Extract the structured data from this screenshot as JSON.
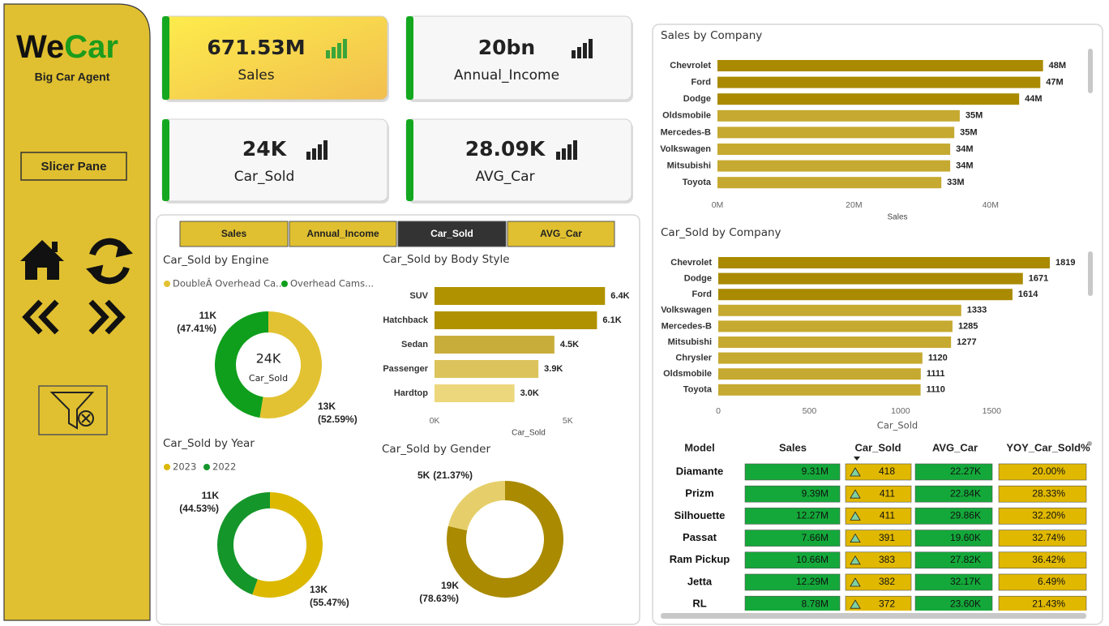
{
  "sidebar": {
    "logo": [
      "We",
      "Car"
    ],
    "tagline": "Big Car Agent",
    "slicer_button": "Slicer Pane"
  },
  "kpis": [
    {
      "value": "671.53M",
      "label": "Sales"
    },
    {
      "value": "20bn",
      "label": "Annual_Income"
    },
    {
      "value": "24K",
      "label": "Car_Sold"
    },
    {
      "value": "28.09K",
      "label": "AVG_Car"
    }
  ],
  "tabs": [
    "Sales",
    "Annual_Income",
    "Car_Sold",
    "AVG_Car"
  ],
  "active_tab": 2,
  "chart_data": [
    {
      "type": "donut",
      "title": "Car_Sold by Engine",
      "categories": [
        "DoubleÂ Overhead Ca...",
        "Overhead Cams..."
      ],
      "colors": [
        "#e2c232",
        "#0f9f1c"
      ],
      "values": [
        52.59,
        47.41
      ],
      "value_labels": [
        "(52.59%)",
        "(47.41%)"
      ],
      "count_labels": [
        "13K",
        "11K"
      ],
      "center_label": "24K",
      "center_caption": "Car_Sold"
    },
    {
      "type": "donut",
      "title": "Car_Sold by Year",
      "categories": [
        "2023",
        "2022"
      ],
      "colors": [
        "#dcb900",
        "#14962a"
      ],
      "values": [
        55.47,
        44.53
      ],
      "value_labels": [
        "(55.47%)",
        "(44.53%)"
      ],
      "count_labels": [
        "13K",
        "11K"
      ]
    },
    {
      "type": "hbar",
      "title": "Car_Sold by Body Style",
      "categories": [
        "SUV",
        "Hatchback",
        "Sedan",
        "Passenger",
        "Hardtop"
      ],
      "values": [
        6400,
        6100,
        4500,
        3900,
        3000
      ],
      "value_labels": [
        "6.4K",
        "6.1K",
        "4.5K",
        "3.9K",
        "3.0K"
      ],
      "colors": [
        "#b09200",
        "#b09200",
        "#c9ad3a",
        "#dcc35c",
        "#ecd77c"
      ],
      "xlim": [
        0,
        7000
      ],
      "xticks": [
        {
          "value": 0,
          "label": "0K"
        },
        {
          "value": 5000,
          "label": "5K"
        }
      ],
      "x_label": "Car_Sold",
      "grid": false
    },
    {
      "type": "donut",
      "title": "Car_Sold by Gender",
      "colors": [
        "#a98a00",
        "#e6cf6a"
      ],
      "values": [
        78.63,
        21.37
      ],
      "value_labels": [
        "(78.63%)",
        "(21.37%)"
      ],
      "count_labels": [
        "19K",
        "5K"
      ]
    },
    {
      "type": "hbar",
      "title": "Sales by Company",
      "categories": [
        "Chevrolet",
        "Ford",
        "Dodge",
        "Oldsmobile",
        "Mercedes-B",
        "Volkswagen",
        "Mitsubishi",
        "Toyota"
      ],
      "values": [
        47700000,
        47300000,
        44200000,
        35500000,
        34700000,
        34100000,
        34100000,
        32800000
      ],
      "value_labels": [
        "48M",
        "47M",
        "44M",
        "35M",
        "35M",
        "34M",
        "34M",
        "33M"
      ],
      "colors": [
        "#a98a00",
        "#a98a00",
        "#a98a00",
        "#c6a930",
        "#c6a930",
        "#c6a930",
        "#c6a930",
        "#c6a930"
      ],
      "xlim": [
        0,
        50000000
      ],
      "xticks": [
        {
          "value": 0,
          "label": "0M"
        },
        {
          "value": 20000000,
          "label": "20M"
        },
        {
          "value": 40000000,
          "label": "40M"
        }
      ],
      "x_label": "Sales",
      "grid": false
    },
    {
      "type": "hbar",
      "title": "Car_Sold by Company",
      "categories": [
        "Chevrolet",
        "Dodge",
        "Ford",
        "Volkswagen",
        "Mercedes-B",
        "Mitsubishi",
        "Chrysler",
        "Oldsmobile",
        "Toyota"
      ],
      "values": [
        1819,
        1671,
        1614,
        1333,
        1285,
        1277,
        1120,
        1111,
        1110
      ],
      "colors": [
        "#a98a00",
        "#a98a00",
        "#a98a00",
        "#c6a930",
        "#c6a930",
        "#c6a930",
        "#c6a930",
        "#c6a930",
        "#c6a930"
      ],
      "xlim": [
        0,
        1850
      ],
      "xticks": [
        0,
        500,
        1000,
        1500
      ],
      "x_label": "Car_Sold",
      "grid": false
    }
  ],
  "table": {
    "columns": [
      "Model",
      "Sales",
      "Car_Sold",
      "AVG_Car",
      "YOY_Car_Sold%"
    ],
    "sort_column": 2,
    "rows": [
      [
        "Diamante",
        "9.31M",
        418,
        "22.27K",
        "20.00%"
      ],
      [
        "Prizm",
        "9.39M",
        411,
        "22.84K",
        "28.33%"
      ],
      [
        "Silhouette",
        "12.27M",
        411,
        "29.86K",
        "32.20%"
      ],
      [
        "Passat",
        "7.66M",
        391,
        "19.60K",
        "32.74%"
      ],
      [
        "Ram Pickup",
        "10.66M",
        383,
        "27.82K",
        "36.42%"
      ],
      [
        "Jetta",
        "12.29M",
        382,
        "32.17K",
        "6.49%"
      ],
      [
        "RL",
        "8.78M",
        372,
        "23.60K",
        "21.43%"
      ]
    ]
  }
}
